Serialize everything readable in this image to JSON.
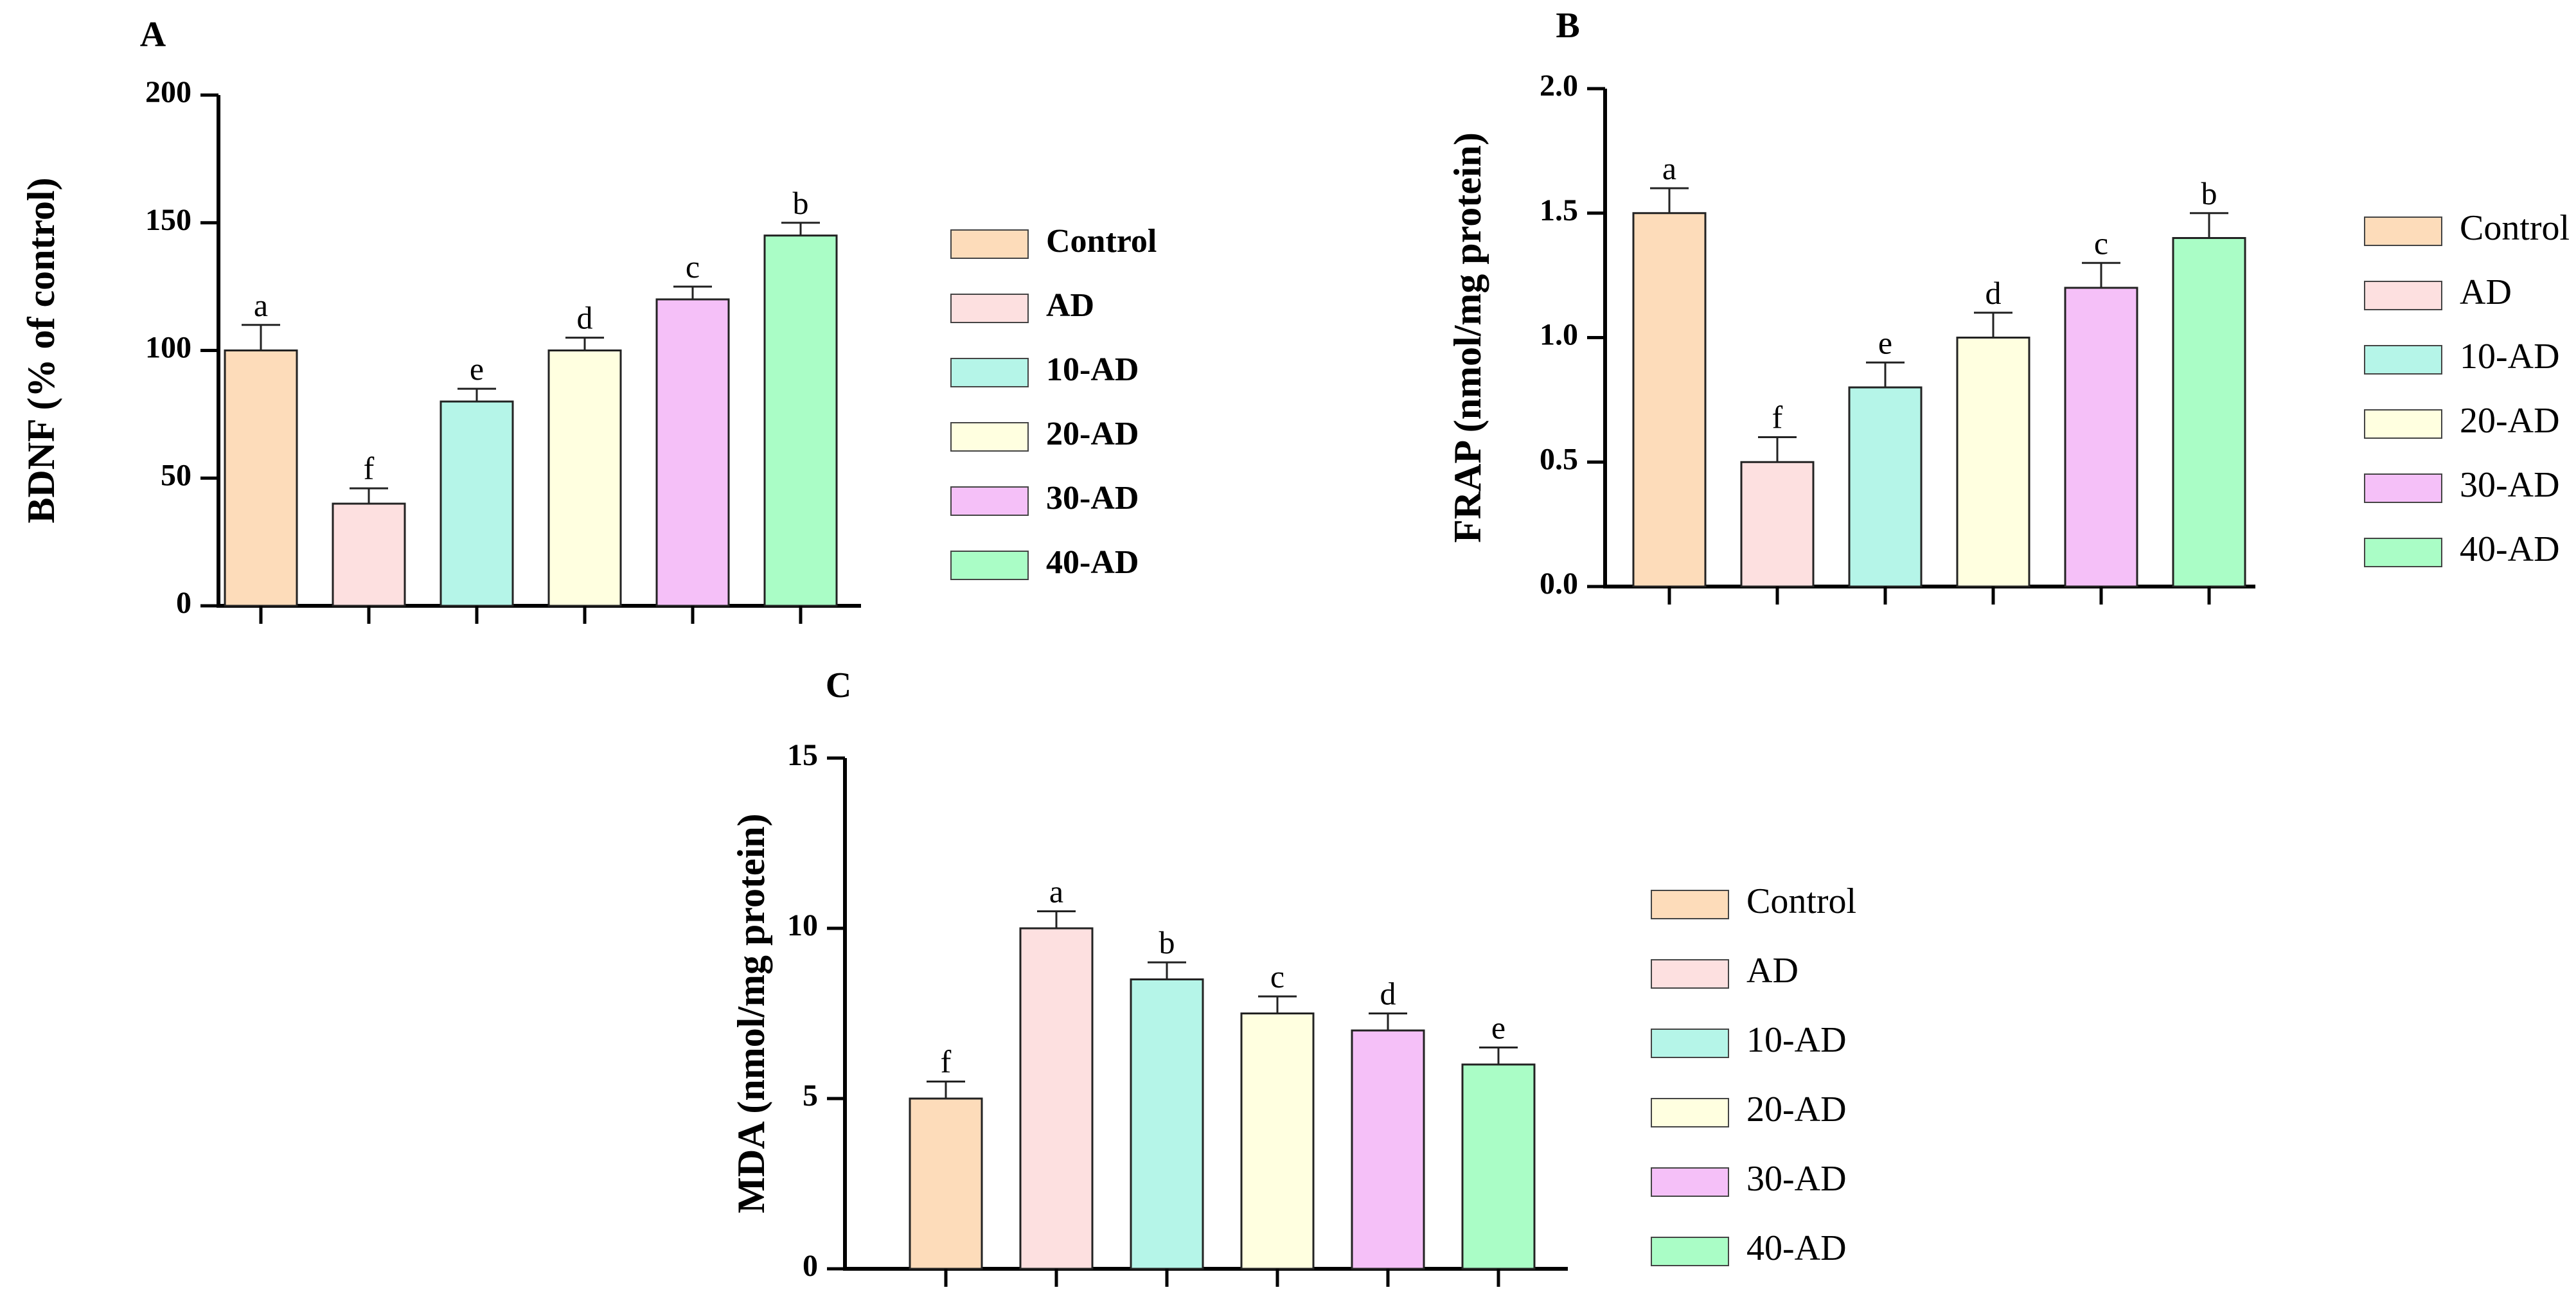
{
  "chart_data": [
    {
      "panel": "A",
      "type": "bar",
      "ylabel": "BDNF (% of control)",
      "ylim": [
        0,
        200
      ],
      "yticks": [
        0,
        50,
        100,
        150,
        200
      ],
      "tick_labels": [
        "0",
        "50",
        "100",
        "150",
        "200"
      ],
      "categories": [
        "Control",
        "AD",
        "10-AD",
        "20-AD",
        "30-AD",
        "40-AD"
      ],
      "values": [
        100,
        40,
        80,
        100,
        120,
        145
      ],
      "errors": [
        10,
        6,
        5,
        5,
        5,
        5
      ],
      "significance": [
        "a",
        "f",
        "e",
        "d",
        "c",
        "b"
      ],
      "legend": [
        "Control",
        "AD",
        "10-AD",
        "20-AD",
        "30-AD",
        "40-AD"
      ],
      "legend_style": "bold",
      "colors": [
        "#FDDCBA",
        "#FDE0E0",
        "#B5F5E8",
        "#FFFFE0",
        "#F5C0F8",
        "#AAFDC6"
      ]
    },
    {
      "panel": "B",
      "type": "bar",
      "ylabel": "FRAP (nmol/mg protein)",
      "ylim": [
        0,
        2.0
      ],
      "yticks": [
        0,
        0.5,
        1.0,
        1.5,
        2.0
      ],
      "tick_labels": [
        "0.0",
        "0.5",
        "1.0",
        "1.5",
        "2.0"
      ],
      "categories": [
        "Control",
        "AD",
        "10-AD",
        "20-AD",
        "30-AD",
        "40-AD"
      ],
      "values": [
        1.5,
        0.5,
        0.8,
        1.0,
        1.2,
        1.4
      ],
      "errors": [
        0.1,
        0.1,
        0.1,
        0.1,
        0.1,
        0.1
      ],
      "significance": [
        "a",
        "f",
        "e",
        "d",
        "c",
        "b"
      ],
      "legend": [
        "Control",
        "AD",
        "10-AD",
        "20-AD",
        "30-AD",
        "40-AD"
      ],
      "legend_style": "plain",
      "colors": [
        "#FDDCBA",
        "#FDE0E0",
        "#B5F5E8",
        "#FFFFE0",
        "#F5C0F8",
        "#AAFDC6"
      ]
    },
    {
      "panel": "C",
      "type": "bar",
      "ylabel": "MDA (nmol/mg protein)",
      "ylim": [
        0,
        15
      ],
      "yticks": [
        0,
        5,
        10,
        15
      ],
      "tick_labels": [
        "0",
        "5",
        "10",
        "15"
      ],
      "categories": [
        "Control",
        "AD",
        "10-AD",
        "20-AD",
        "30-AD",
        "40-AD"
      ],
      "values": [
        5.0,
        10.0,
        8.5,
        7.5,
        7.0,
        6.0
      ],
      "errors": [
        0.5,
        0.5,
        0.5,
        0.5,
        0.5,
        0.5
      ],
      "significance": [
        "f",
        "a",
        "b",
        "c",
        "d",
        "e"
      ],
      "legend": [
        "Control",
        "AD",
        "10-AD",
        "20-AD",
        "30-AD",
        "40-AD"
      ],
      "legend_style": "plain",
      "colors": [
        "#FDDCBA",
        "#FDE0E0",
        "#B5F5E8",
        "#FFFFE0",
        "#F5C0F8",
        "#AAFDC6"
      ]
    }
  ]
}
